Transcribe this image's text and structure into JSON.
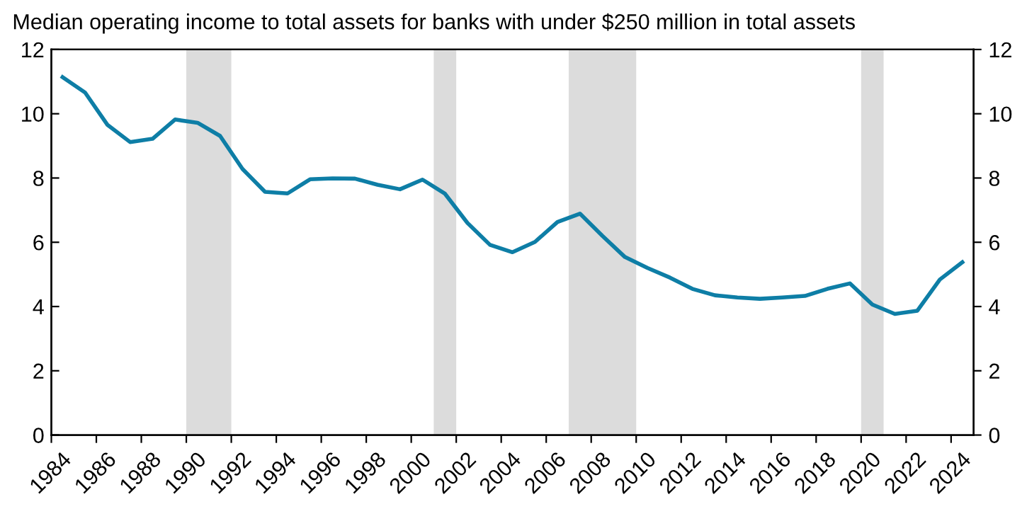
{
  "chart_data": {
    "type": "line",
    "title": "Median operating income to total assets for banks with under $250 million in total assets",
    "x": [
      1984.5,
      1985.5,
      1986.5,
      1987.5,
      1988.5,
      1989.5,
      1990.5,
      1991.5,
      1992.5,
      1993.5,
      1994.5,
      1995.5,
      1996.5,
      1997.5,
      1998.5,
      1999.5,
      2000.5,
      2001.5,
      2002.5,
      2003.5,
      2004.5,
      2005.5,
      2006.5,
      2007.5,
      2008.5,
      2009.5,
      2010.5,
      2011.5,
      2012.5,
      2013.5,
      2014.5,
      2015.5,
      2016.5,
      2017.5,
      2018.5,
      2019.5,
      2020.5,
      2021.5,
      2022.5,
      2023.5,
      2024.5
    ],
    "series": [
      {
        "color": "#0e7ea6",
        "values": [
          11.14,
          10.66,
          9.65,
          9.12,
          9.22,
          9.82,
          9.72,
          9.31,
          8.28,
          7.57,
          7.52,
          7.96,
          7.99,
          7.98,
          7.79,
          7.65,
          7.95,
          7.51,
          6.6,
          5.92,
          5.69,
          6.01,
          6.63,
          6.89,
          6.2,
          5.54,
          5.2,
          4.9,
          4.55,
          4.35,
          4.28,
          4.24,
          4.28,
          4.33,
          4.55,
          4.72,
          4.06,
          3.77,
          3.87,
          4.84,
          5.38
        ]
      }
    ],
    "xlim": [
      1984,
      2025
    ],
    "xticks": [
      1984,
      1986,
      1988,
      1990,
      1992,
      1994,
      1996,
      1998,
      2000,
      2002,
      2004,
      2006,
      2008,
      2010,
      2012,
      2014,
      2016,
      2018,
      2020,
      2022,
      2024
    ],
    "ylim": [
      0,
      12
    ],
    "yticks": [
      0,
      2,
      4,
      6,
      8,
      10,
      12
    ],
    "y2lim": [
      0,
      12
    ],
    "y2ticks": [
      0,
      2,
      4,
      6,
      8,
      10,
      12
    ],
    "bands": [
      {
        "axis": "x",
        "from": 1990,
        "to": 1992,
        "color": "#dcdcdc"
      },
      {
        "axis": "x",
        "from": 2001,
        "to": 2002,
        "color": "#dcdcdc"
      },
      {
        "axis": "x",
        "from": 2007,
        "to": 2010,
        "color": "#dcdcdc"
      },
      {
        "axis": "x",
        "from": 2020,
        "to": 2021,
        "color": "#dcdcdc"
      }
    ],
    "grid": false,
    "marker": "none",
    "line_style": "solid"
  }
}
